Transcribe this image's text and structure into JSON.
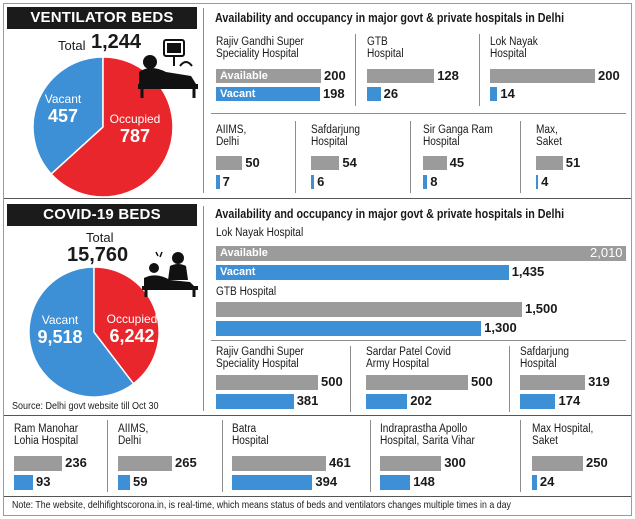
{
  "ventilator": {
    "header": "VENTILATOR BEDS",
    "total_label": "Total",
    "total_value": "1,244",
    "subtitle": "Availability and occupancy in major govt & private hospitals in Delhi",
    "vacant_label": "Vacant",
    "vacant_value": "457",
    "occupied_label": "Occupied",
    "occupied_value": "787"
  },
  "covid": {
    "header": "COVID-19 BEDS",
    "total_label": "Total",
    "total_value": "15,760",
    "subtitle": "Availability and occupancy in major govt & private hospitals in Delhi",
    "vacant_label": "Vacant",
    "vacant_value": "9,518",
    "occupied_label": "Occupied",
    "occupied_value": "6,242"
  },
  "legend": {
    "available": "Available",
    "vacant": "Vacant"
  },
  "source": "Source: Delhi govt website till Oct 30",
  "note": "Note: The website, delhifightscorona.in, is real-time, which means status of beds and ventilators changes multiple times in a day",
  "colors": {
    "occupied": "#e8262b",
    "vacant": "#3d8fd6",
    "available": "#9b9b9b",
    "header_bg": "#1b1b1b"
  },
  "chart_data": [
    {
      "type": "pie",
      "title": "VENTILATOR BEDS",
      "labels": [
        "Vacant",
        "Occupied"
      ],
      "values": [
        457,
        787
      ],
      "total": 1244
    },
    {
      "type": "bar",
      "title": "Availability and occupancy in major govt & private hospitals in Delhi",
      "categories": [
        "Rajiv Gandhi Super Speciality Hospital",
        "GTB Hospital",
        "Lok Nayak Hospital",
        "AIIMS, Delhi",
        "Safdarjung Hospital",
        "Sir Ganga Ram Hospital",
        "Max, Saket"
      ],
      "series": [
        {
          "name": "Available",
          "values": [
            200,
            128,
            200,
            50,
            54,
            45,
            51
          ]
        },
        {
          "name": "Vacant",
          "values": [
            198,
            26,
            14,
            7,
            6,
            8,
            4
          ]
        }
      ]
    },
    {
      "type": "pie",
      "title": "COVID-19 BEDS",
      "labels": [
        "Vacant",
        "Occupied"
      ],
      "values": [
        9518,
        6242
      ],
      "total": 15760
    },
    {
      "type": "bar",
      "title": "Availability and occupancy in major govt & private hospitals in Delhi",
      "categories": [
        "Lok Nayak Hospital",
        "GTB Hospital",
        "Rajiv Gandhi Super Speciality Hospital",
        "Sardar Patel Covid Army Hospital",
        "Safdarjung Hospital",
        "Ram Manohar Lohia Hospital",
        "AIIMS, Delhi",
        "Batra Hospital",
        "Indraprastha Apollo Hospital, Sarita Vihar",
        "Max Hospital, Saket"
      ],
      "series": [
        {
          "name": "Available",
          "values": [
            2010,
            1500,
            500,
            500,
            319,
            236,
            265,
            461,
            300,
            250
          ]
        },
        {
          "name": "Vacant",
          "values": [
            1435,
            1300,
            381,
            202,
            174,
            93,
            59,
            394,
            148,
            24
          ]
        }
      ]
    }
  ],
  "vent_panels": [
    {
      "name": [
        "Rajiv Gandhi Super",
        "Speciality Hospital"
      ]
    },
    {
      "name": [
        "GTB",
        "Hospital"
      ]
    },
    {
      "name": [
        "Lok Nayak",
        "Hospital"
      ]
    },
    {
      "name": [
        "AIIMS,",
        "Delhi"
      ]
    },
    {
      "name": [
        "Safdarjung",
        "Hospital"
      ]
    },
    {
      "name": [
        "Sir Ganga Ram",
        "Hospital"
      ]
    },
    {
      "name": [
        "Max,",
        "Saket"
      ]
    }
  ],
  "covid_panels": [
    {
      "name": [
        "Lok Nayak Hospital"
      ]
    },
    {
      "name": [
        "GTB Hospital"
      ]
    },
    {
      "name": [
        "Rajiv Gandhi Super",
        "Speciality Hospital"
      ]
    },
    {
      "name": [
        "Sardar Patel Covid",
        "Army Hospital"
      ]
    },
    {
      "name": [
        "Safdarjung",
        "Hospital"
      ]
    },
    {
      "name": [
        "Ram Manohar",
        "Lohia Hospital"
      ]
    },
    {
      "name": [
        "AIIMS,",
        "Delhi"
      ]
    },
    {
      "name": [
        "Batra",
        "Hospital"
      ]
    },
    {
      "name": [
        "Indraprastha Apollo",
        "Hospital, Sarita Vihar"
      ]
    },
    {
      "name": [
        "Max Hospital,",
        "Saket"
      ]
    }
  ]
}
